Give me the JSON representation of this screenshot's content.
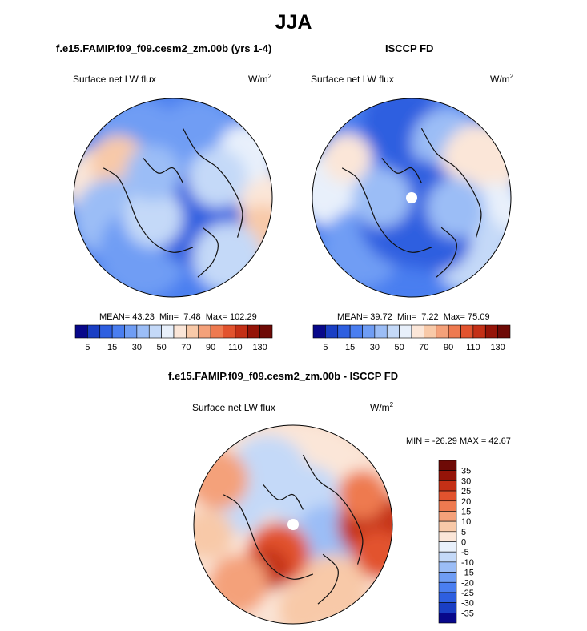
{
  "figure": {
    "title": "JJA",
    "variable": "Surface net LW flux",
    "units_base": "W/m",
    "units_exp": "2"
  },
  "panels": {
    "model": {
      "title": "f.e15.FAMIP.f09_f09.cesm2_zm.00b (yrs 1-4)",
      "mean_label": "MEAN=",
      "mean": "43.23",
      "min_label": "Min=",
      "min": "7.48",
      "max_label": "Max=",
      "max": "102.29"
    },
    "obs": {
      "title": "ISCCP FD",
      "mean_label": "MEAN=",
      "mean": "39.72",
      "min_label": "Min=",
      "min": "7.22",
      "max_label": "Max=",
      "max": "75.09"
    },
    "diff": {
      "title": "f.e15.FAMIP.f09_f09.cesm2_zm.00b - ISCCP FD",
      "minmax": "MIN = -26.29 MAX =  42.67"
    }
  },
  "chart_data": [
    {
      "type": "heatmap",
      "projection": "north-polar-stereographic",
      "title": "f.e15.FAMIP.f09_f09.cesm2_zm.00b (yrs 1-4)",
      "variable": "Surface net LW flux",
      "units": "W/m2",
      "mean": 43.23,
      "min": 7.48,
      "max": 102.29,
      "colorbar": {
        "orientation": "horizontal",
        "levels": [
          5,
          10,
          15,
          20,
          30,
          40,
          50,
          60,
          70,
          80,
          90,
          100,
          110,
          120,
          130
        ],
        "tick_labels": [
          "5",
          "15",
          "30",
          "50",
          "70",
          "90",
          "110",
          "130"
        ],
        "colors": [
          "#08088a",
          "#1a3fc4",
          "#2e5fe0",
          "#4a7ef0",
          "#6f9df4",
          "#9bbdf6",
          "#c4d9f8",
          "#e8f0fb",
          "#fbe6d8",
          "#f8c9a8",
          "#f4a17a",
          "#ee7a50",
          "#e2532e",
          "#c43016",
          "#951408",
          "#6e0a06"
        ]
      }
    },
    {
      "type": "heatmap",
      "projection": "north-polar-stereographic",
      "title": "ISCCP FD",
      "variable": "Surface net LW flux",
      "units": "W/m2",
      "mean": 39.72,
      "min": 7.22,
      "max": 75.09,
      "colorbar": {
        "orientation": "horizontal",
        "levels": [
          5,
          10,
          15,
          20,
          30,
          40,
          50,
          60,
          70,
          80,
          90,
          100,
          110,
          120,
          130
        ],
        "tick_labels": [
          "5",
          "15",
          "30",
          "50",
          "70",
          "90",
          "110",
          "130"
        ],
        "colors": [
          "#08088a",
          "#1a3fc4",
          "#2e5fe0",
          "#4a7ef0",
          "#6f9df4",
          "#9bbdf6",
          "#c4d9f8",
          "#e8f0fb",
          "#fbe6d8",
          "#f8c9a8",
          "#f4a17a",
          "#ee7a50",
          "#e2532e",
          "#c43016",
          "#951408",
          "#6e0a06"
        ]
      }
    },
    {
      "type": "heatmap",
      "projection": "north-polar-stereographic",
      "title": "f.e15.FAMIP.f09_f09.cesm2_zm.00b - ISCCP FD",
      "variable": "Surface net LW flux",
      "units": "W/m2",
      "min": -26.29,
      "max": 42.67,
      "colorbar": {
        "orientation": "vertical",
        "levels": [
          -35,
          -30,
          -25,
          -20,
          -15,
          -10,
          -5,
          0,
          5,
          10,
          15,
          20,
          25,
          30,
          35
        ],
        "tick_labels": [
          "35",
          "30",
          "25",
          "20",
          "15",
          "10",
          "5",
          "0",
          "-5",
          "-10",
          "-15",
          "-20",
          "-25",
          "-30",
          "-35"
        ],
        "colors": [
          "#08088a",
          "#1a3fc4",
          "#2e5fe0",
          "#4a7ef0",
          "#6f9df4",
          "#9bbdf6",
          "#c4d9f8",
          "#e8f0fb",
          "#fbe6d8",
          "#f8c9a8",
          "#f4a17a",
          "#ee7a50",
          "#e2532e",
          "#c43016",
          "#951408",
          "#6e0a06"
        ]
      }
    }
  ]
}
